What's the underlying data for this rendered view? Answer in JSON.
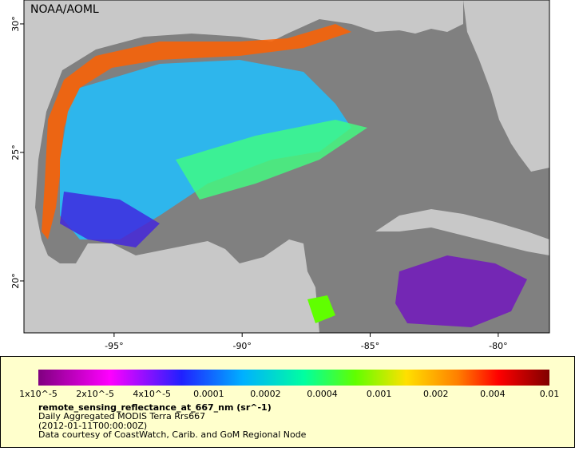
{
  "map": {
    "credit": "NOAA/AOML",
    "xlim": [
      -98.52,
      -78.0
    ],
    "ylim": [
      17.98,
      30.93
    ],
    "xticks": [
      {
        "value": -95,
        "label": "-95°"
      },
      {
        "value": -90,
        "label": "-90°"
      },
      {
        "value": -85,
        "label": "-85°"
      },
      {
        "value": -80,
        "label": "-80°"
      }
    ],
    "yticks": [
      {
        "value": 30,
        "label": "30°"
      },
      {
        "value": 25,
        "label": "25°"
      },
      {
        "value": 20,
        "label": "20°"
      }
    ]
  },
  "colorbar": {
    "tick_labels": [
      "1x10^-5",
      "2x10^-5",
      "4x10^-5",
      "0.0001",
      "0.0002",
      "0.0004",
      "0.001",
      "0.002",
      "0.004",
      "0.01"
    ],
    "title": "remote_sensing_reflectance_at_667_nm (sr^-1)",
    "lines": [
      "Daily Aggregated MODIS Terra Rrs667",
      "(2012-01-11T00:00:00Z)",
      "Data courtesy of CoastWatch, Carib. and GoM Regional Node"
    ]
  }
}
